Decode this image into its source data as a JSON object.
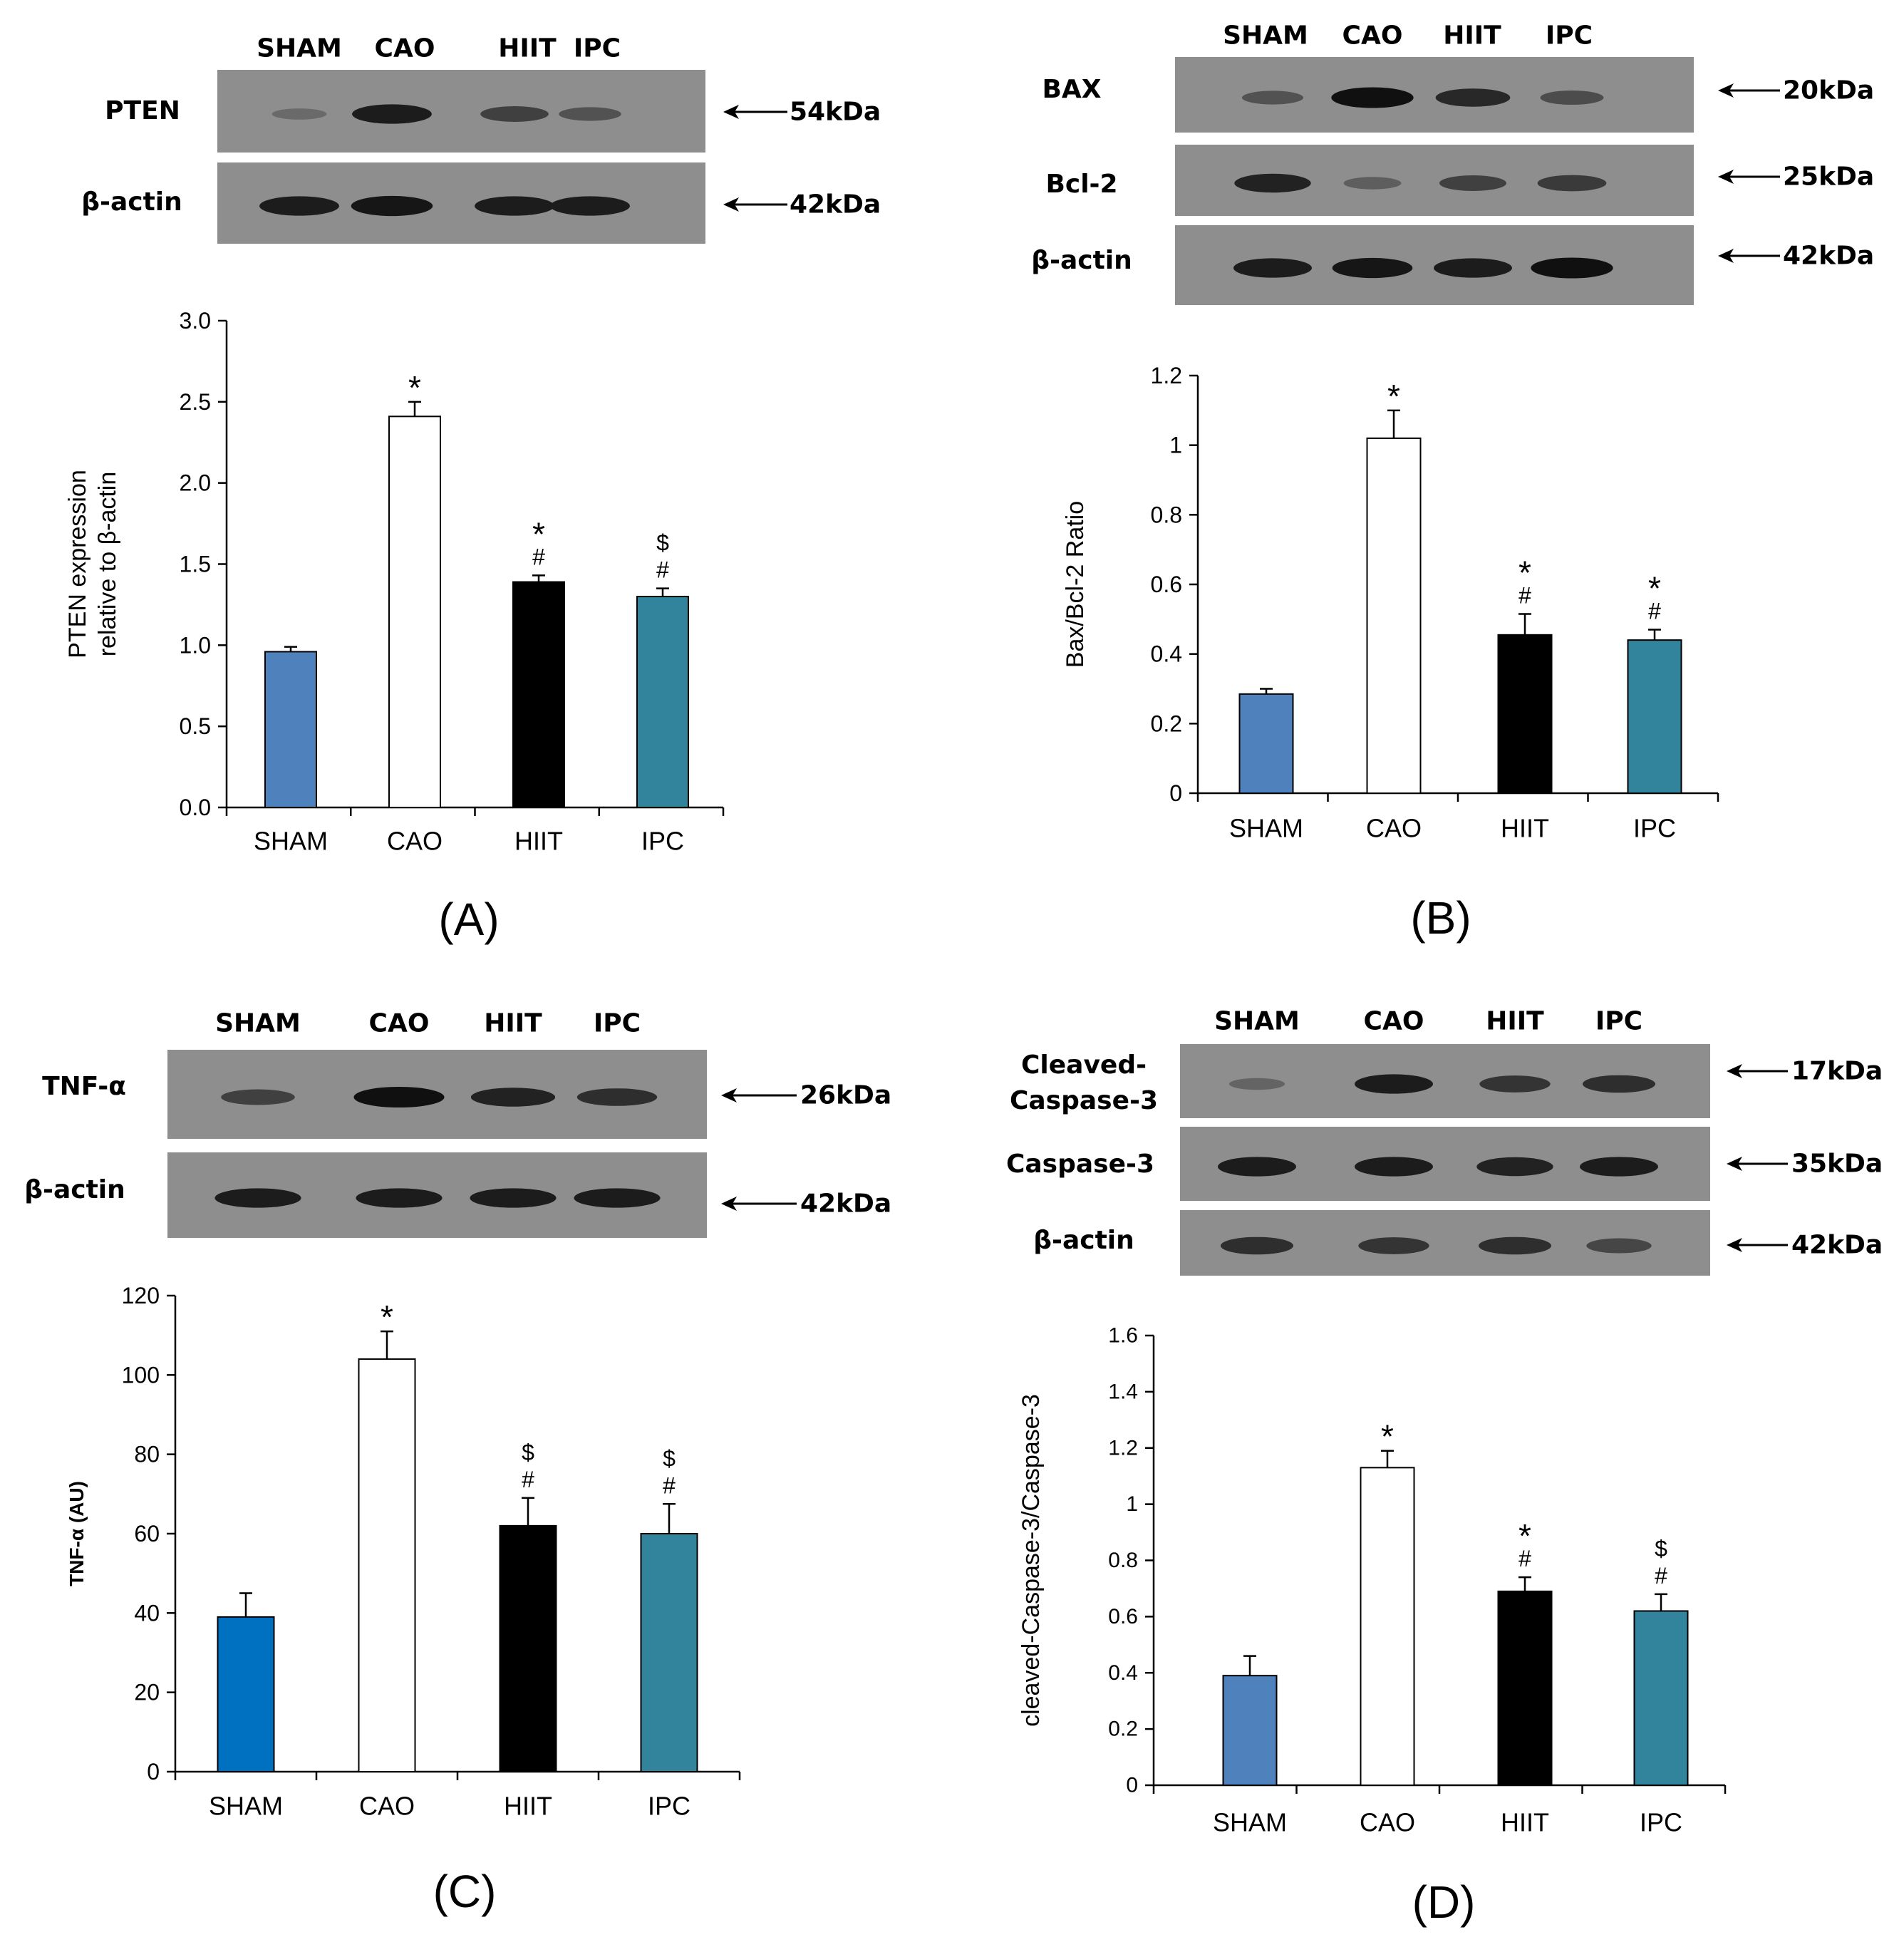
{
  "panels": [
    {
      "panel_label": "(A)",
      "blot": {
        "lanes": [
          "SHAM",
          "CAO",
          "HIIT",
          "IPC"
        ],
        "rows": [
          {
            "protein": "PTEN",
            "size": "54kDa",
            "intensities": [
              0.2,
              0.85,
              0.55,
              0.4
            ]
          },
          {
            "protein": "β-actin",
            "size": "42kDa",
            "intensities": [
              0.85,
              0.9,
              0.85,
              0.85
            ]
          }
        ]
      }
    },
    {
      "panel_label": "(B)",
      "blot": {
        "lanes": [
          "SHAM",
          "CAO",
          "HIIT",
          "IPC"
        ],
        "rows": [
          {
            "protein": "BAX",
            "size": "20kDa",
            "intensities": [
              0.4,
              0.95,
              0.75,
              0.45
            ]
          },
          {
            "protein": "Bcl-2",
            "size": "25kDa",
            "intensities": [
              0.8,
              0.3,
              0.55,
              0.6
            ]
          },
          {
            "protein": "β-actin",
            "size": "42kDa",
            "intensities": [
              0.85,
              0.9,
              0.85,
              0.95
            ]
          }
        ]
      }
    },
    {
      "panel_label": "(C)",
      "blot": {
        "lanes": [
          "SHAM",
          "CAO",
          "HIIT",
          "IPC"
        ],
        "rows": [
          {
            "protein": "TNF-α",
            "size": "26kDa",
            "intensities": [
              0.55,
              0.95,
              0.8,
              0.7
            ]
          },
          {
            "protein": "β-actin",
            "size": "42kDa",
            "intensities": [
              0.85,
              0.85,
              0.85,
              0.85
            ]
          }
        ]
      }
    },
    {
      "panel_label": "(D)",
      "blot": {
        "lanes": [
          "SHAM",
          "CAO",
          "HIIT",
          "IPC"
        ],
        "rows": [
          {
            "protein": "Cleaved-\nCaspase-3",
            "size": "17kDa",
            "intensities": [
              0.25,
              0.85,
              0.65,
              0.7
            ]
          },
          {
            "protein": "Caspase-3",
            "size": "35kDa",
            "intensities": [
              0.85,
              0.85,
              0.8,
              0.85
            ]
          },
          {
            "protein": "β-actin",
            "size": "42kDa",
            "intensities": [
              0.7,
              0.65,
              0.7,
              0.5
            ]
          }
        ]
      }
    }
  ],
  "chart_data": [
    {
      "type": "bar",
      "title": "",
      "categories": [
        "SHAM",
        "CAO",
        "HIIT",
        "IPC"
      ],
      "values": [
        0.96,
        2.41,
        1.39,
        1.3
      ],
      "errors": [
        0.03,
        0.09,
        0.04,
        0.05
      ],
      "annotations": [
        [],
        [
          "*"
        ],
        [
          "*",
          "#"
        ],
        [
          "$",
          "#"
        ]
      ],
      "ylabel": "PTEN expression\nrelative to β-actin",
      "xlabel": "",
      "ylim": [
        0,
        3.0
      ],
      "yticks": [
        0.0,
        0.5,
        1.0,
        1.5,
        2.0,
        2.5,
        3.0
      ],
      "ytick_labels": [
        "0.0",
        "0.5",
        "1.0",
        "1.5",
        "2.0",
        "2.5",
        "3.0"
      ],
      "bar_colors": [
        "#4f81bd",
        "#ffffff",
        "#000000",
        "#31849b"
      ],
      "grid": false
    },
    {
      "type": "bar",
      "title": "",
      "categories": [
        "SHAM",
        "CAO",
        "HIIT",
        "IPC"
      ],
      "values": [
        0.285,
        1.02,
        0.455,
        0.44
      ],
      "errors": [
        0.015,
        0.08,
        0.06,
        0.03
      ],
      "annotations": [
        [],
        [
          "*"
        ],
        [
          "*",
          "#"
        ],
        [
          "*",
          "#"
        ]
      ],
      "ylabel": "Bax/Bcl-2 Ratio",
      "xlabel": "",
      "ylim": [
        0,
        1.2
      ],
      "yticks": [
        0,
        0.2,
        0.4,
        0.6,
        0.8,
        1.0,
        1.2
      ],
      "ytick_labels": [
        "0",
        "0.2",
        "0.4",
        "0.6",
        "0.8",
        "1",
        "1.2"
      ],
      "bar_colors": [
        "#4f81bd",
        "#ffffff",
        "#000000",
        "#31849b"
      ],
      "grid": false
    },
    {
      "type": "bar",
      "title": "",
      "categories": [
        "SHAM",
        "CAO",
        "HIIT",
        "IPC"
      ],
      "values": [
        39,
        104,
        62,
        60
      ],
      "errors": [
        6,
        7,
        7,
        7.5
      ],
      "annotations": [
        [],
        [
          "*"
        ],
        [
          "$",
          "#"
        ],
        [
          "$",
          "#"
        ]
      ],
      "ylabel": "TNF-α (AU)",
      "xlabel": "",
      "ylim": [
        0,
        120
      ],
      "yticks": [
        0,
        20,
        40,
        60,
        80,
        100,
        120
      ],
      "ytick_labels": [
        "0",
        "20",
        "40",
        "60",
        "80",
        "100",
        "120"
      ],
      "bar_colors": [
        "#0070c0",
        "#ffffff",
        "#000000",
        "#31849b"
      ],
      "grid": false
    },
    {
      "type": "bar",
      "title": "",
      "categories": [
        "SHAM",
        "CAO",
        "HIIT",
        "IPC"
      ],
      "values": [
        0.39,
        1.13,
        0.69,
        0.62
      ],
      "errors": [
        0.07,
        0.06,
        0.05,
        0.06
      ],
      "annotations": [
        [],
        [
          "*"
        ],
        [
          "*",
          "#"
        ],
        [
          "$",
          "#"
        ]
      ],
      "ylabel": "cleaved-Caspase-3/Caspase-3",
      "xlabel": "",
      "ylim": [
        0,
        1.6
      ],
      "yticks": [
        0,
        0.2,
        0.4,
        0.6,
        0.8,
        1.0,
        1.2,
        1.4,
        1.6
      ],
      "ytick_labels": [
        "0",
        "0.2",
        "0.4",
        "0.6",
        "0.8",
        "1",
        "1.2",
        "1.4",
        "1.6"
      ],
      "bar_colors": [
        "#4f81bd",
        "#ffffff",
        "#000000",
        "#31849b"
      ],
      "grid": false
    }
  ]
}
